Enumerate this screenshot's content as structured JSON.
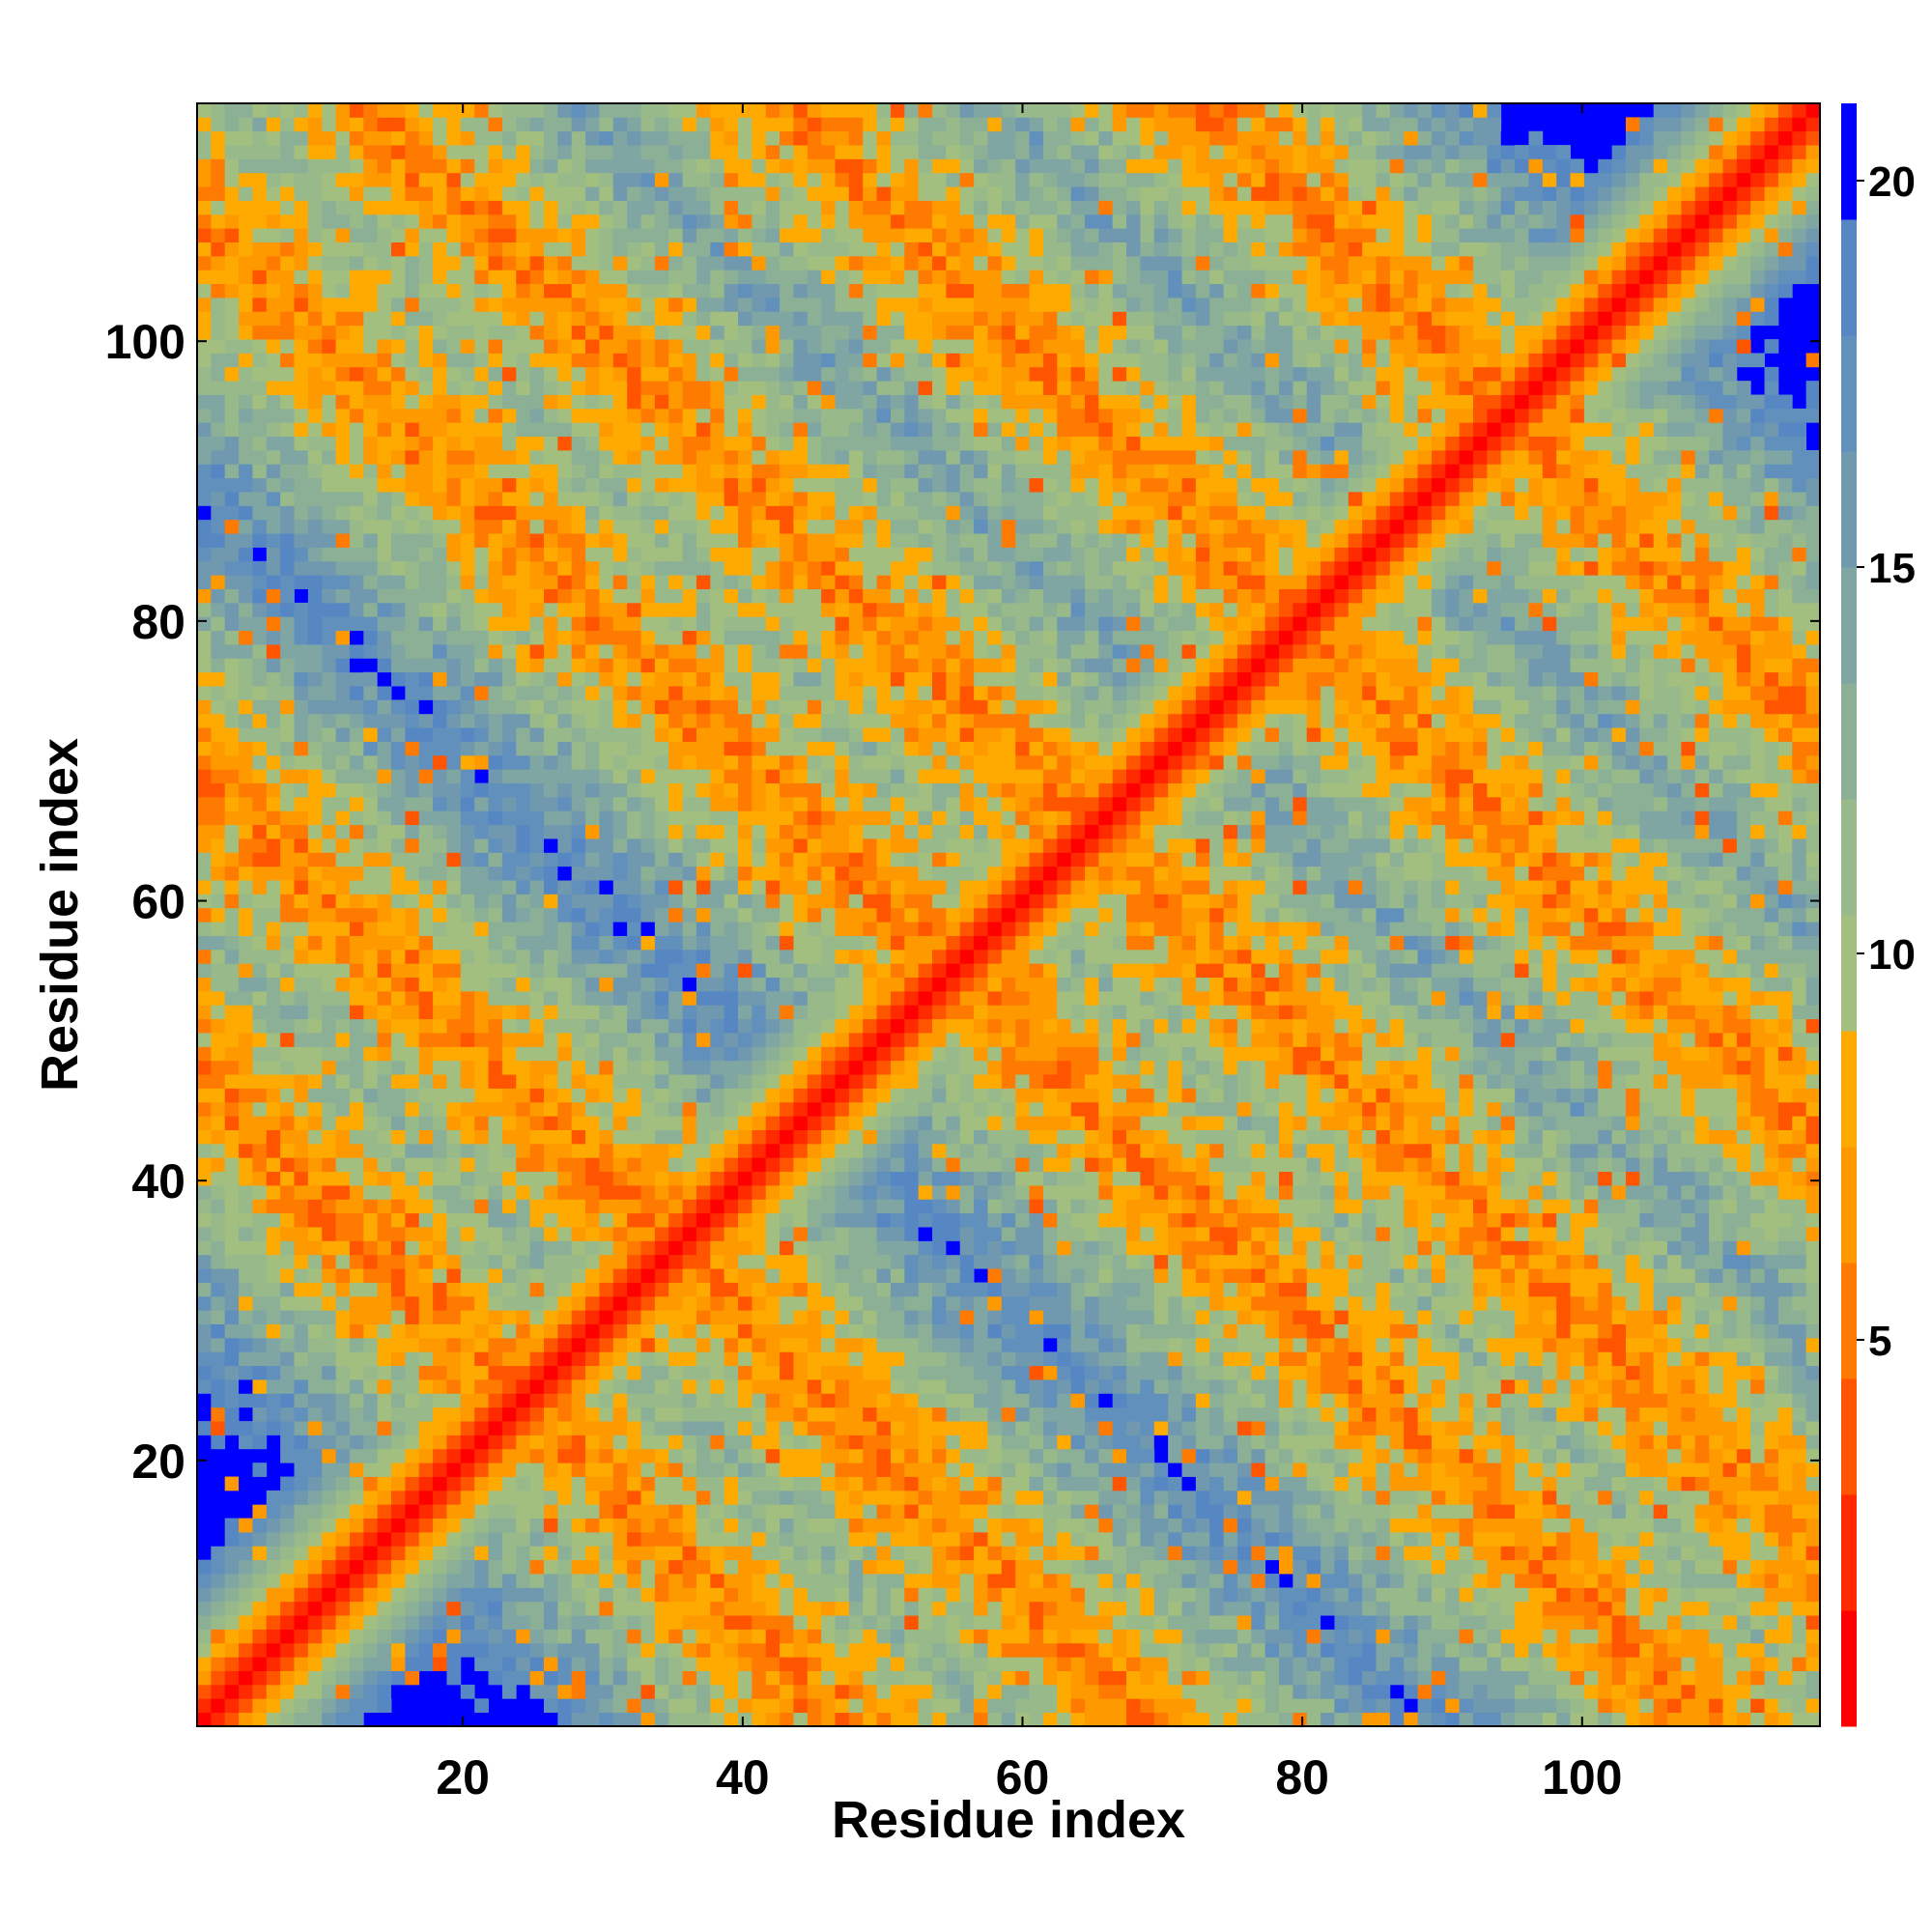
{
  "chart_data": {
    "type": "heatmap",
    "title": "",
    "xlabel": "Residue index",
    "ylabel": "Residue index",
    "n_residues": 117,
    "xlim": [
      1,
      117
    ],
    "ylim": [
      1,
      117
    ],
    "x_ticks": [
      20,
      40,
      60,
      80,
      100
    ],
    "y_ticks": [
      20,
      40,
      60,
      80,
      100
    ],
    "grid": false,
    "colorbar": {
      "position": "right",
      "ticks": [
        5,
        10,
        15,
        20
      ],
      "range": [
        0,
        21
      ],
      "max_color": "#0000ff",
      "levels": [
        {
          "from": 0,
          "to": 1.5,
          "color": "#ff0000"
        },
        {
          "from": 1.5,
          "to": 3,
          "color": "#ff2a00"
        },
        {
          "from": 3,
          "to": 4.5,
          "color": "#ff5500"
        },
        {
          "from": 4.5,
          "to": 6,
          "color": "#ff7a00"
        },
        {
          "from": 6,
          "to": 7.5,
          "color": "#ff9900"
        },
        {
          "from": 7.5,
          "to": 9,
          "color": "#ffaa00"
        },
        {
          "from": 9,
          "to": 10.5,
          "color": "#a2bf80"
        },
        {
          "from": 10.5,
          "to": 12,
          "color": "#98b98a"
        },
        {
          "from": 12,
          "to": 13.5,
          "color": "#8cb095"
        },
        {
          "from": 13.5,
          "to": 15,
          "color": "#7fa6a2"
        },
        {
          "from": 15,
          "to": 16.5,
          "color": "#7099b0"
        },
        {
          "from": 16.5,
          "to": 18,
          "color": "#6090bb"
        },
        {
          "from": 18,
          "to": 19.5,
          "color": "#5787c3"
        },
        {
          "from": 19.5,
          "to": 21,
          "color": "#0000ff"
        }
      ]
    },
    "matrix_description_bands": [
      {
        "kind": "main-diagonal",
        "i_minus_j": 0
      },
      {
        "kind": "anti-diagonal",
        "i_plus_j": 48
      },
      {
        "kind": "anti-diagonal",
        "i_plus_j": 70
      },
      {
        "kind": "anti-diagonal",
        "i_plus_j": 110
      },
      {
        "kind": "anti-diagonal",
        "i_plus_j": 130
      },
      {
        "kind": "anti-diagonal",
        "i_plus_j": 160
      },
      {
        "kind": "anti-diagonal",
        "i_plus_j": 190
      }
    ],
    "cutoff": 20
  }
}
